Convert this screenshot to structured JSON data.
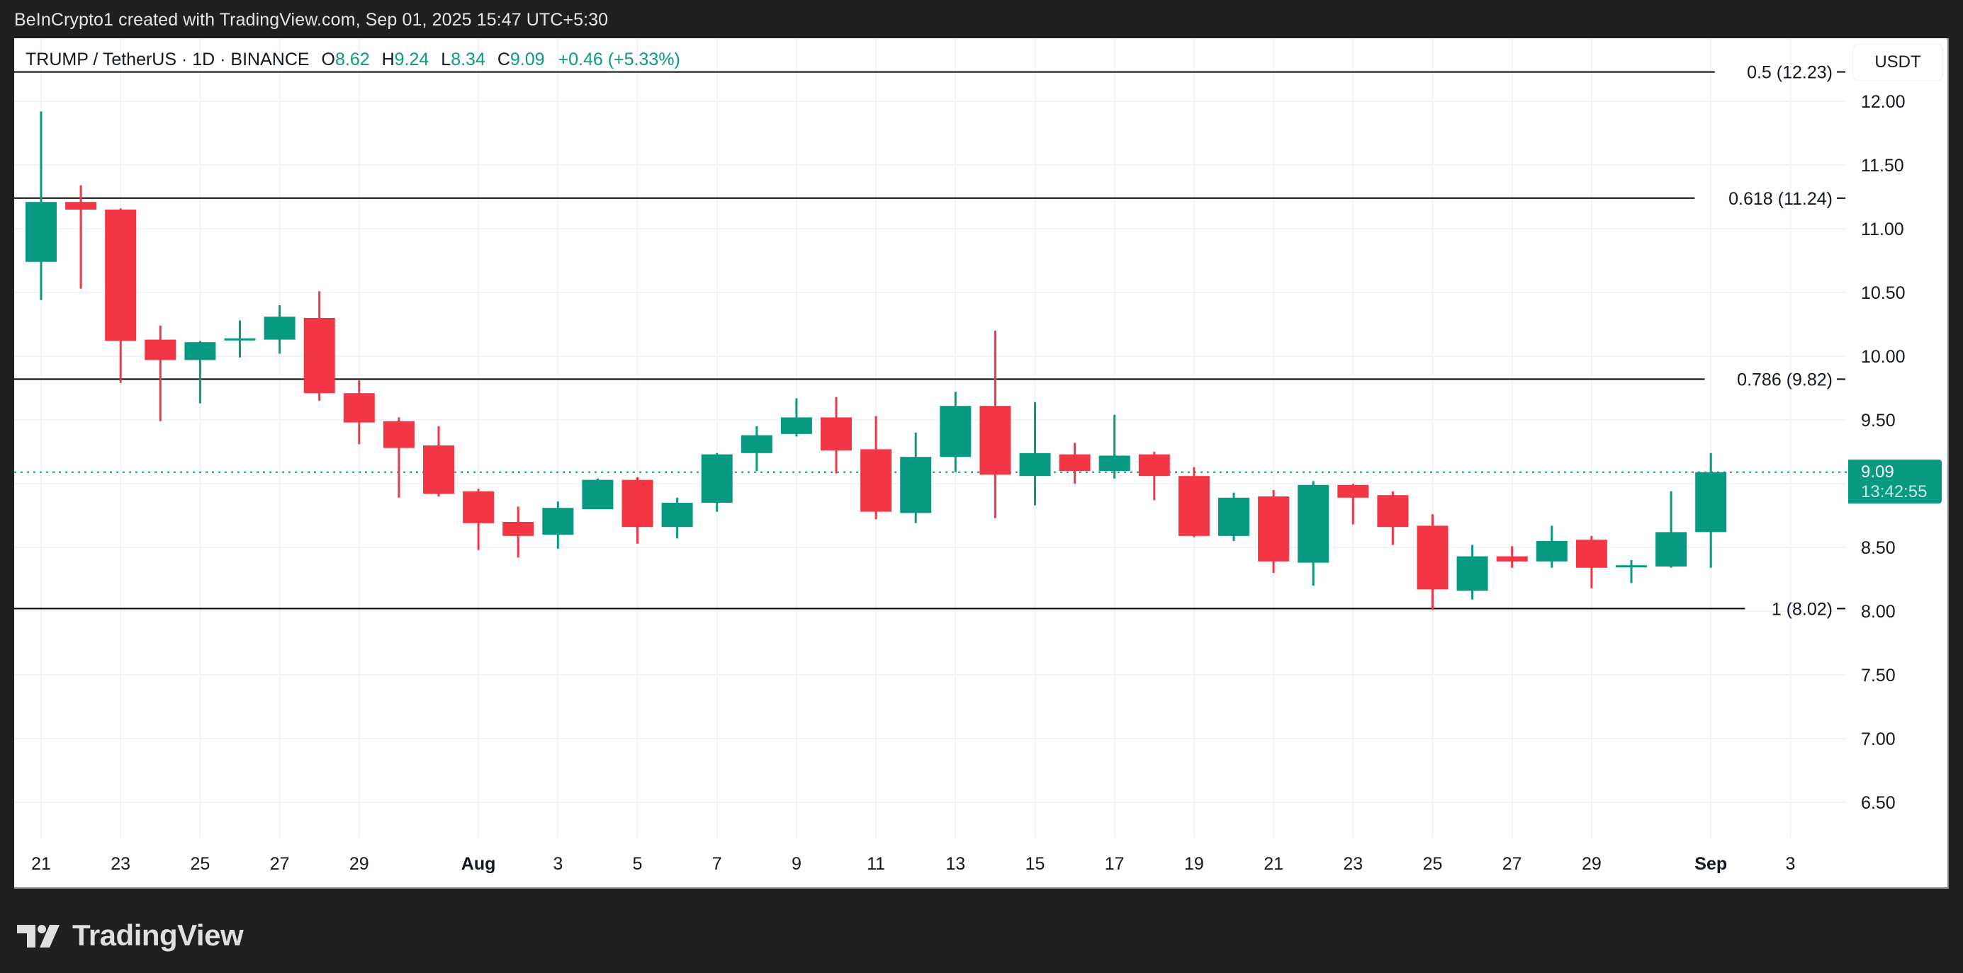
{
  "credit": "BeInCrypto1 created with TradingView.com, Sep 01, 2025 15:47 UTC+5:30",
  "legend": {
    "symbol": "TRUMP / TetherUS · 1D · BINANCE",
    "o_label": "O",
    "o": "8.62",
    "h_label": "H",
    "h": "9.24",
    "l_label": "L",
    "l": "8.34",
    "c_label": "C",
    "c": "9.09",
    "change": "+0.46 (+5.33%)"
  },
  "price_axis": {
    "currency": "USDT",
    "last_price": "9.09",
    "countdown": "13:42:55"
  },
  "logo": {
    "text": "TradingView"
  },
  "colors": {
    "up": "#089981",
    "down": "#F23645",
    "grid": "#F0F3FA",
    "text": "#131722",
    "fib_line": "#000000"
  },
  "chart_data": {
    "type": "candlestick",
    "title": "TRUMP / TetherUS · 1D · BINANCE",
    "xlabel": "",
    "ylabel": "USDT",
    "ylim": [
      6.2,
      12.62
    ],
    "grid": true,
    "y_ticks": [
      "12.00",
      "11.50",
      "11.00",
      "10.50",
      "10.00",
      "9.50",
      "9.00",
      "8.50",
      "8.00",
      "7.50",
      "7.00",
      "6.50"
    ],
    "y_tick_values": [
      12.0,
      11.5,
      11.0,
      10.5,
      10.0,
      9.5,
      9.0,
      8.5,
      8.0,
      7.5,
      7.0,
      6.5
    ],
    "x_ticks": [
      {
        "label": "21",
        "idx": 0,
        "bold": false
      },
      {
        "label": "23",
        "idx": 2,
        "bold": false
      },
      {
        "label": "25",
        "idx": 4,
        "bold": false
      },
      {
        "label": "27",
        "idx": 6,
        "bold": false
      },
      {
        "label": "29",
        "idx": 8,
        "bold": false
      },
      {
        "label": "Aug",
        "idx": 11,
        "bold": true
      },
      {
        "label": "3",
        "idx": 13,
        "bold": false
      },
      {
        "label": "5",
        "idx": 15,
        "bold": false
      },
      {
        "label": "7",
        "idx": 17,
        "bold": false
      },
      {
        "label": "9",
        "idx": 19,
        "bold": false
      },
      {
        "label": "11",
        "idx": 21,
        "bold": false
      },
      {
        "label": "13",
        "idx": 23,
        "bold": false
      },
      {
        "label": "15",
        "idx": 25,
        "bold": false
      },
      {
        "label": "17",
        "idx": 27,
        "bold": false
      },
      {
        "label": "19",
        "idx": 29,
        "bold": false
      },
      {
        "label": "21",
        "idx": 31,
        "bold": false
      },
      {
        "label": "23",
        "idx": 33,
        "bold": false
      },
      {
        "label": "25",
        "idx": 35,
        "bold": false
      },
      {
        "label": "27",
        "idx": 37,
        "bold": false
      },
      {
        "label": "29",
        "idx": 39,
        "bold": false
      },
      {
        "label": "Sep",
        "idx": 42,
        "bold": true
      },
      {
        "label": "3",
        "idx": 44,
        "bold": false
      }
    ],
    "fib_levels": [
      {
        "label": "0.5 (12.23)",
        "value": 12.23
      },
      {
        "label": "0.618 (11.24)",
        "value": 11.24
      },
      {
        "label": "0.786 (9.82)",
        "value": 9.82
      },
      {
        "label": "1 (8.02)",
        "value": 8.02
      }
    ],
    "last_price_line": 9.09,
    "candles": [
      {
        "date": "Jul 21",
        "o": 10.74,
        "h": 11.92,
        "l": 10.44,
        "c": 11.21
      },
      {
        "date": "Jul 22",
        "o": 11.21,
        "h": 11.34,
        "l": 10.53,
        "c": 11.15
      },
      {
        "date": "Jul 23",
        "o": 11.15,
        "h": 11.16,
        "l": 9.79,
        "c": 10.12
      },
      {
        "date": "Jul 24",
        "o": 10.13,
        "h": 10.24,
        "l": 9.49,
        "c": 9.97
      },
      {
        "date": "Jul 25",
        "o": 9.97,
        "h": 10.12,
        "l": 9.63,
        "c": 10.11
      },
      {
        "date": "Jul 26",
        "o": 10.13,
        "h": 10.28,
        "l": 9.99,
        "c": 10.14
      },
      {
        "date": "Jul 27",
        "o": 10.13,
        "h": 10.4,
        "l": 10.02,
        "c": 10.31
      },
      {
        "date": "Jul 28",
        "o": 10.3,
        "h": 10.51,
        "l": 9.65,
        "c": 9.71
      },
      {
        "date": "Jul 29",
        "o": 9.71,
        "h": 9.81,
        "l": 9.31,
        "c": 9.48
      },
      {
        "date": "Jul 30",
        "o": 9.49,
        "h": 9.52,
        "l": 8.89,
        "c": 9.28
      },
      {
        "date": "Jul 31",
        "o": 9.3,
        "h": 9.45,
        "l": 8.9,
        "c": 8.92
      },
      {
        "date": "Aug 1",
        "o": 8.94,
        "h": 8.96,
        "l": 8.48,
        "c": 8.69
      },
      {
        "date": "Aug 2",
        "o": 8.7,
        "h": 8.82,
        "l": 8.42,
        "c": 8.59
      },
      {
        "date": "Aug 3",
        "o": 8.6,
        "h": 8.86,
        "l": 8.49,
        "c": 8.81
      },
      {
        "date": "Aug 4",
        "o": 8.8,
        "h": 9.04,
        "l": 8.8,
        "c": 9.03
      },
      {
        "date": "Aug 5",
        "o": 9.03,
        "h": 9.05,
        "l": 8.53,
        "c": 8.66
      },
      {
        "date": "Aug 6",
        "o": 8.66,
        "h": 8.89,
        "l": 8.57,
        "c": 8.85
      },
      {
        "date": "Aug 7",
        "o": 8.85,
        "h": 9.24,
        "l": 8.78,
        "c": 9.23
      },
      {
        "date": "Aug 8",
        "o": 9.24,
        "h": 9.45,
        "l": 9.1,
        "c": 9.38
      },
      {
        "date": "Aug 9",
        "o": 9.39,
        "h": 9.67,
        "l": 9.37,
        "c": 9.52
      },
      {
        "date": "Aug 10",
        "o": 9.52,
        "h": 9.68,
        "l": 9.08,
        "c": 9.26
      },
      {
        "date": "Aug 11",
        "o": 9.27,
        "h": 9.53,
        "l": 8.72,
        "c": 8.78
      },
      {
        "date": "Aug 12",
        "o": 8.77,
        "h": 9.4,
        "l": 8.69,
        "c": 9.21
      },
      {
        "date": "Aug 13",
        "o": 9.21,
        "h": 9.72,
        "l": 9.09,
        "c": 9.61
      },
      {
        "date": "Aug 14",
        "o": 9.61,
        "h": 10.2,
        "l": 8.73,
        "c": 9.07
      },
      {
        "date": "Aug 15",
        "o": 9.06,
        "h": 9.64,
        "l": 8.83,
        "c": 9.24
      },
      {
        "date": "Aug 16",
        "o": 9.23,
        "h": 9.32,
        "l": 9.0,
        "c": 9.1
      },
      {
        "date": "Aug 17",
        "o": 9.1,
        "h": 9.54,
        "l": 9.04,
        "c": 9.22
      },
      {
        "date": "Aug 18",
        "o": 9.23,
        "h": 9.25,
        "l": 8.87,
        "c": 9.06
      },
      {
        "date": "Aug 19",
        "o": 9.06,
        "h": 9.13,
        "l": 8.58,
        "c": 8.59
      },
      {
        "date": "Aug 20",
        "o": 8.59,
        "h": 8.93,
        "l": 8.55,
        "c": 8.89
      },
      {
        "date": "Aug 21",
        "o": 8.9,
        "h": 8.95,
        "l": 8.3,
        "c": 8.39
      },
      {
        "date": "Aug 22",
        "o": 8.38,
        "h": 9.02,
        "l": 8.2,
        "c": 8.99
      },
      {
        "date": "Aug 23",
        "o": 8.99,
        "h": 9.0,
        "l": 8.68,
        "c": 8.89
      },
      {
        "date": "Aug 24",
        "o": 8.91,
        "h": 8.94,
        "l": 8.52,
        "c": 8.66
      },
      {
        "date": "Aug 25",
        "o": 8.67,
        "h": 8.76,
        "l": 8.01,
        "c": 8.17
      },
      {
        "date": "Aug 26",
        "o": 8.16,
        "h": 8.52,
        "l": 8.09,
        "c": 8.43
      },
      {
        "date": "Aug 27",
        "o": 8.43,
        "h": 8.51,
        "l": 8.34,
        "c": 8.39
      },
      {
        "date": "Aug 28",
        "o": 8.39,
        "h": 8.67,
        "l": 8.34,
        "c": 8.55
      },
      {
        "date": "Aug 29",
        "o": 8.56,
        "h": 8.59,
        "l": 8.18,
        "c": 8.34
      },
      {
        "date": "Aug 30",
        "o": 8.35,
        "h": 8.4,
        "l": 8.22,
        "c": 8.36
      },
      {
        "date": "Aug 31",
        "o": 8.35,
        "h": 8.94,
        "l": 8.34,
        "c": 8.62
      },
      {
        "date": "Sep 1",
        "o": 8.62,
        "h": 9.24,
        "l": 8.34,
        "c": 9.09
      }
    ]
  }
}
